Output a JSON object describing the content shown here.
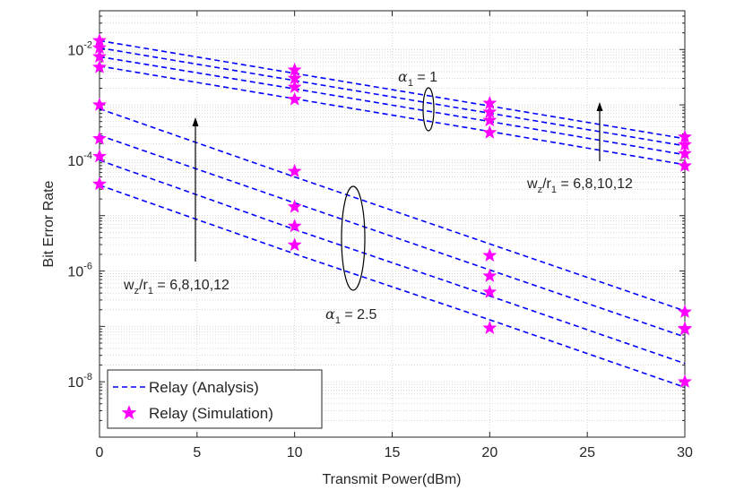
{
  "chart_data": {
    "type": "line",
    "xlabel": "Transmit Power(dBm)",
    "ylabel": "Bit Error Rate",
    "xlim": [
      0,
      30
    ],
    "ylim_log10": [
      -9,
      -1.3
    ],
    "x_ticks": [
      0,
      5,
      10,
      15,
      20,
      25,
      30
    ],
    "y_ticks": [
      {
        "base": "10",
        "exp": "-8",
        "log": -8
      },
      {
        "base": "10",
        "exp": "-6",
        "log": -6
      },
      {
        "base": "10",
        "exp": "-4",
        "log": -4
      },
      {
        "base": "10",
        "exp": "-2",
        "log": -2
      }
    ],
    "grid": true,
    "legend_position": "bottom-left",
    "legend": [
      {
        "label": "Relay (Analysis)",
        "style": "dashed-line",
        "color": "#0000ff"
      },
      {
        "label": "Relay (Simulation)",
        "style": "star-marker",
        "color": "#ff00ff"
      }
    ],
    "line_color": "#0000ff",
    "marker_color": "#ff00ff",
    "groups": [
      {
        "name": "alpha1 = 1",
        "series": [
          {
            "w_over_r": 6,
            "x": [
              0,
              10,
              20,
              30
            ],
            "analysis_log10": [
              -2.3,
              -2.89,
              -3.48,
              -4.08
            ],
            "simulation_log10": [
              -2.32,
              -2.9,
              -3.5,
              -4.1
            ]
          },
          {
            "w_over_r": 8,
            "x": [
              0,
              10,
              20,
              30
            ],
            "analysis_log10": [
              -2.13,
              -2.71,
              -3.3,
              -3.9
            ],
            "simulation_log10": [
              -2.13,
              -2.68,
              -3.28,
              -3.88
            ]
          },
          {
            "w_over_r": 10,
            "x": [
              0,
              10,
              20,
              30
            ],
            "analysis_log10": [
              -1.97,
              -2.56,
              -3.15,
              -3.74
            ],
            "simulation_log10": [
              -1.97,
              -2.52,
              -3.13,
              -3.72
            ]
          },
          {
            "w_over_r": 12,
            "x": [
              0,
              10,
              20,
              30
            ],
            "analysis_log10": [
              -1.84,
              -2.43,
              -3.02,
              -3.61
            ],
            "simulation_log10": [
              -1.84,
              -2.37,
              -2.97,
              -3.58
            ]
          }
        ]
      },
      {
        "name": "alpha1 = 2.5",
        "series": [
          {
            "w_over_r": 6,
            "x": [
              0,
              10,
              20,
              30
            ],
            "analysis_log10": [
              -4.45,
              -5.69,
              -6.88,
              -8.1
            ],
            "simulation_log10": [
              -4.43,
              -5.53,
              -7.03,
              -8.0
            ]
          },
          {
            "w_over_r": 8,
            "x": [
              0,
              10,
              20,
              30
            ],
            "analysis_log10": [
              -4.0,
              -5.25,
              -6.45,
              -7.67
            ],
            "simulation_log10": [
              -3.93,
              -5.19,
              -6.38,
              -7.04
            ]
          },
          {
            "w_over_r": 10,
            "x": [
              0,
              10,
              20,
              30
            ],
            "analysis_log10": [
              -3.55,
              -4.77,
              -5.98,
              -7.19
            ],
            "simulation_log10": [
              -3.61,
              -4.84,
              -6.09,
              -7.05
            ]
          },
          {
            "w_over_r": 12,
            "x": [
              0,
              10,
              20,
              30
            ],
            "analysis_log10": [
              -3.07,
              -4.3,
              -5.51,
              -6.72
            ],
            "simulation_log10": [
              -3.0,
              -4.2,
              -5.72,
              -6.74
            ]
          }
        ]
      }
    ],
    "annotations": {
      "alpha_top": {
        "symbol": "α",
        "sub": "1",
        "rest": " = 1"
      },
      "alpha_bottom": {
        "symbol": "α",
        "sub": "1",
        "rest": " = 2.5"
      },
      "w_right": {
        "pre": "w",
        "sub1": "z",
        "mid": "/r",
        "sub2": "1",
        "rest": " = 6,8,10,12"
      },
      "w_left": {
        "pre": "w",
        "sub1": "z",
        "mid": "/r",
        "sub2": "1",
        "rest": " = 6,8,10,12"
      }
    }
  }
}
